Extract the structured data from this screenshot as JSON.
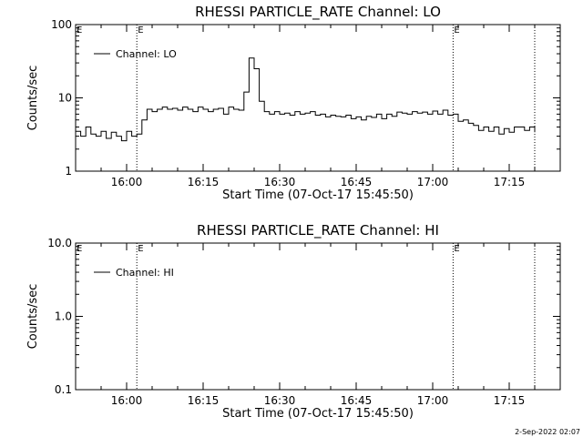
{
  "chart_data": [
    {
      "type": "line",
      "title": "RHESSI PARTICLE_RATE Channel: LO",
      "xlabel": "Start Time (07-Oct-17 15:45:50)",
      "ylabel": "Counts/sec",
      "yscale": "log",
      "ylim": [
        1,
        100
      ],
      "xlim": [
        "15:50",
        "17:25"
      ],
      "xticks": [
        "16:00",
        "16:15",
        "16:30",
        "16:45",
        "17:00",
        "17:15"
      ],
      "yticks": [
        "1",
        "10",
        "100"
      ],
      "grid": false,
      "legend": "top-left",
      "markers": [
        {
          "time": "16:02",
          "label": "E"
        },
        {
          "time": "17:04",
          "label": "E"
        },
        {
          "time": "17:20",
          "label": ""
        }
      ],
      "series": [
        {
          "name": "Channel: LO",
          "x": [
            "15:50",
            "15:51",
            "15:52",
            "15:53",
            "15:54",
            "15:55",
            "15:56",
            "15:57",
            "15:58",
            "15:59",
            "16:00",
            "16:01",
            "16:02",
            "16:03",
            "16:04",
            "16:05",
            "16:06",
            "16:07",
            "16:08",
            "16:09",
            "16:10",
            "16:11",
            "16:12",
            "16:13",
            "16:14",
            "16:15",
            "16:16",
            "16:17",
            "16:18",
            "16:19",
            "16:20",
            "16:21",
            "16:22",
            "16:23",
            "16:24",
            "16:25",
            "16:26",
            "16:27",
            "16:28",
            "16:29",
            "16:30",
            "16:31",
            "16:32",
            "16:33",
            "16:34",
            "16:35",
            "16:36",
            "16:37",
            "16:38",
            "16:39",
            "16:40",
            "16:41",
            "16:42",
            "16:43",
            "16:44",
            "16:45",
            "16:46",
            "16:47",
            "16:48",
            "16:49",
            "16:50",
            "16:51",
            "16:52",
            "16:53",
            "16:54",
            "16:55",
            "16:56",
            "16:57",
            "16:58",
            "16:59",
            "17:00",
            "17:01",
            "17:02",
            "17:03",
            "17:04",
            "17:05",
            "17:06",
            "17:07",
            "17:08",
            "17:09",
            "17:10",
            "17:11",
            "17:12",
            "17:13",
            "17:14",
            "17:15",
            "17:16",
            "17:17",
            "17:18",
            "17:19",
            "17:20"
          ],
          "y": [
            3.5,
            3.0,
            4.0,
            3.2,
            3.0,
            3.5,
            2.8,
            3.4,
            3.0,
            2.6,
            3.5,
            3.0,
            3.2,
            5.0,
            7.0,
            6.5,
            7.0,
            7.5,
            7.0,
            7.2,
            6.8,
            7.5,
            7.0,
            6.5,
            7.5,
            7.0,
            6.5,
            7.0,
            7.2,
            6.0,
            7.5,
            7.0,
            6.8,
            12,
            35,
            25,
            9,
            6.5,
            6.0,
            6.5,
            6.0,
            6.2,
            5.8,
            6.5,
            6.0,
            6.2,
            6.5,
            5.8,
            6.0,
            5.5,
            5.8,
            5.6,
            5.5,
            5.8,
            5.2,
            5.5,
            5.0,
            5.6,
            5.4,
            6.0,
            5.2,
            6.0,
            5.6,
            6.4,
            6.2,
            6.0,
            6.5,
            6.2,
            6.4,
            6.0,
            6.6,
            6.0,
            6.8,
            5.8,
            6.0,
            4.8,
            5.0,
            4.5,
            4.2,
            3.6,
            4.0,
            3.5,
            4.0,
            3.2,
            3.8,
            3.4,
            4.0,
            4.0,
            3.6,
            4.0,
            3.4
          ]
        }
      ]
    },
    {
      "type": "line",
      "title": "RHESSI PARTICLE_RATE Channel: HI",
      "xlabel": "Start Time (07-Oct-17 15:45:50)",
      "ylabel": "Counts/sec",
      "yscale": "log",
      "ylim": [
        0.1,
        10
      ],
      "xlim": [
        "15:50",
        "17:25"
      ],
      "xticks": [
        "16:00",
        "16:15",
        "16:30",
        "16:45",
        "17:00",
        "17:15"
      ],
      "yticks": [
        "0.1",
        "1.0",
        "10.0"
      ],
      "grid": false,
      "legend": "top-left",
      "markers": [
        {
          "time": "16:02",
          "label": "E"
        },
        {
          "time": "17:04",
          "label": "E"
        },
        {
          "time": "17:20",
          "label": ""
        }
      ],
      "series": [
        {
          "name": "Channel: HI",
          "x": [],
          "y": []
        }
      ]
    }
  ],
  "footer": {
    "timestamp": "2-Sep-2022 02:07"
  },
  "colors": {
    "background": "#ffffff",
    "foreground": "#000000"
  }
}
